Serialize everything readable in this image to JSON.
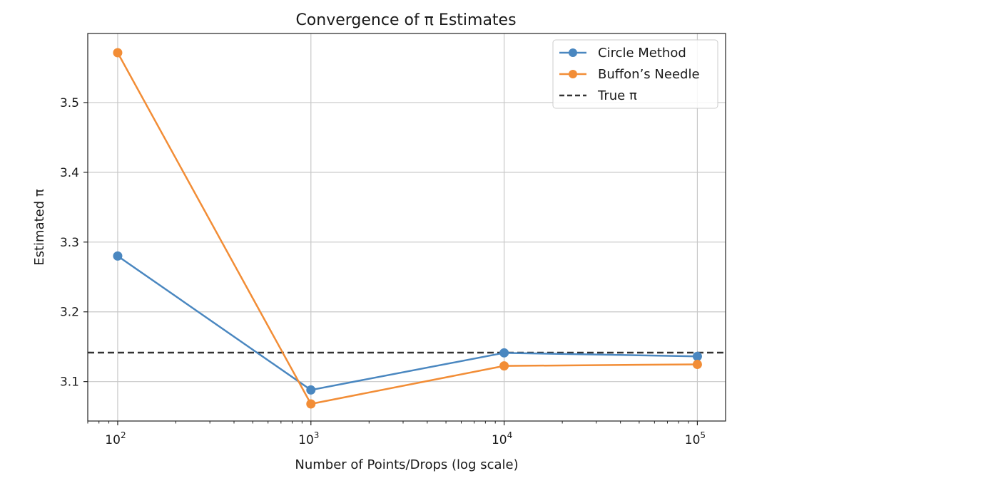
{
  "chart_data": {
    "type": "line",
    "title": "Convergence of π Estimates",
    "xlabel": "Number of Points/Drops (log scale)",
    "ylabel": "Estimated π",
    "x_scale": "log",
    "x_ticks": [
      {
        "value": 100,
        "base": "10",
        "exp": "2"
      },
      {
        "value": 1000,
        "base": "10",
        "exp": "3"
      },
      {
        "value": 10000,
        "base": "10",
        "exp": "4"
      },
      {
        "value": 100000,
        "base": "10",
        "exp": "5"
      }
    ],
    "y_ticks": [
      3.1,
      3.2,
      3.3,
      3.4,
      3.5
    ],
    "y_tick_labels": [
      "3.1",
      "3.2",
      "3.3",
      "3.4",
      "3.5"
    ],
    "xlim": [
      70,
      140000
    ],
    "ylim": [
      3.0435,
      3.599
    ],
    "grid": true,
    "legend_position": "top-right",
    "x": [
      100,
      1000,
      10000,
      100000
    ],
    "series": [
      {
        "name": "Circle Method",
        "color": "#4a87c0",
        "values": [
          3.28,
          3.088,
          3.1412,
          3.1362
        ]
      },
      {
        "name": "Buffon’s Needle",
        "color": "#f28d36",
        "values": [
          3.5714,
          3.068,
          3.1225,
          3.1247
        ]
      }
    ],
    "reference_line": {
      "name": "True π",
      "value": 3.14159,
      "color": "#333333",
      "style": "dashed"
    }
  }
}
